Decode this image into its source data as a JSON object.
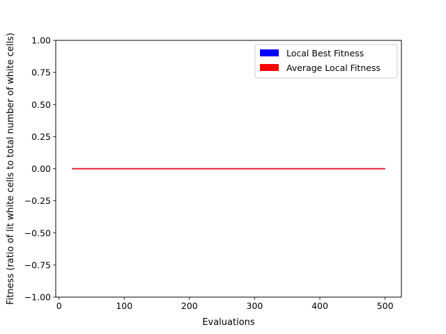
{
  "chart_data": {
    "type": "line",
    "title": "",
    "xlabel": "Evaluations",
    "ylabel": "Fitness (ratio of lit white cells to total number of white cells)",
    "xlim": [
      -5,
      525
    ],
    "ylim": [
      -1.0,
      1.0
    ],
    "xticks": [
      0,
      100,
      200,
      300,
      400,
      500
    ],
    "xtick_labels": [
      "0",
      "100",
      "200",
      "300",
      "400",
      "500"
    ],
    "yticks": [
      -1.0,
      -0.75,
      -0.5,
      -0.25,
      0.0,
      0.25,
      0.5,
      0.75,
      1.0
    ],
    "ytick_labels": [
      "−1.00",
      "−0.75",
      "−0.50",
      "−0.25",
      "0.00",
      "0.25",
      "0.50",
      "0.75",
      "1.00"
    ],
    "grid": false,
    "legend_position": "upper-right",
    "series": [
      {
        "name": "Local Best Fitness",
        "color": "#0000ff",
        "x": [
          20,
          500
        ],
        "y": [
          0.0,
          0.0
        ]
      },
      {
        "name": "Average Local Fitness",
        "color": "#ff0000",
        "x": [
          20,
          500
        ],
        "y": [
          0.0,
          0.0
        ]
      }
    ]
  }
}
